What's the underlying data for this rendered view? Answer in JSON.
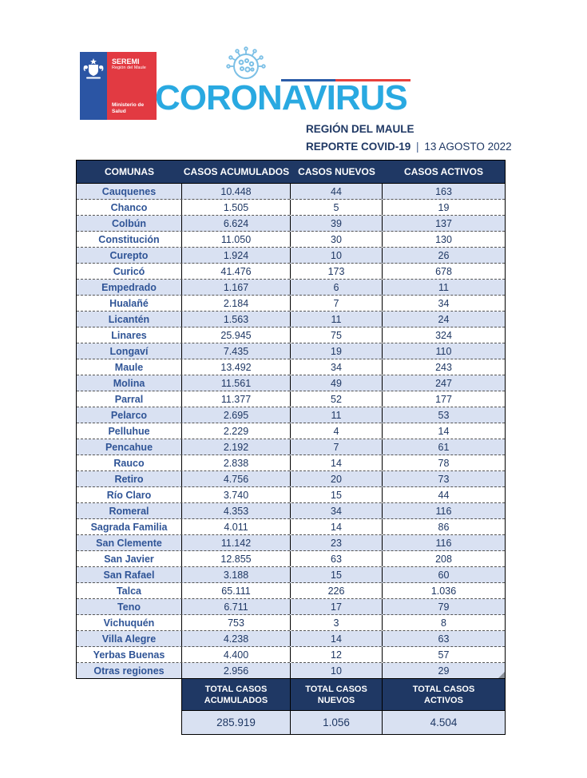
{
  "header": {
    "logo": {
      "seremi": "SEREMI",
      "region": "Región del Maule",
      "ministerio_line1": "Ministerio de",
      "ministerio_line2": "Salud"
    },
    "title": "CORONAVIRUS",
    "subtitle1": "REGIÓN DEL MAULE",
    "subtitle2_bold": "REPORTE COVID-19",
    "subtitle2_sep": "|",
    "subtitle2_date": "13 AGOSTO 2022"
  },
  "table": {
    "columns": [
      "COMUNAS",
      "CASOS ACUMULADOS",
      "CASOS NUEVOS",
      "CASOS ACTIVOS"
    ],
    "rows": [
      [
        "Cauquenes",
        "10.448",
        "44",
        "163"
      ],
      [
        "Chanco",
        "1.505",
        "5",
        "19"
      ],
      [
        "Colbún",
        "6.624",
        "39",
        "137"
      ],
      [
        "Constitución",
        "11.050",
        "30",
        "130"
      ],
      [
        "Curepto",
        "1.924",
        "10",
        "26"
      ],
      [
        "Curicó",
        "41.476",
        "173",
        "678"
      ],
      [
        "Empedrado",
        "1.167",
        "6",
        "11"
      ],
      [
        "Hualañé",
        "2.184",
        "7",
        "34"
      ],
      [
        "Licantén",
        "1.563",
        "11",
        "24"
      ],
      [
        "Linares",
        "25.945",
        "75",
        "324"
      ],
      [
        "Longaví",
        "7.435",
        "19",
        "110"
      ],
      [
        "Maule",
        "13.492",
        "34",
        "243"
      ],
      [
        "Molina",
        "11.561",
        "49",
        "247"
      ],
      [
        "Parral",
        "11.377",
        "52",
        "177"
      ],
      [
        "Pelarco",
        "2.695",
        "11",
        "53"
      ],
      [
        "Pelluhue",
        "2.229",
        "4",
        "14"
      ],
      [
        "Pencahue",
        "2.192",
        "7",
        "61"
      ],
      [
        "Rauco",
        "2.838",
        "14",
        "78"
      ],
      [
        "Retiro",
        "4.756",
        "20",
        "73"
      ],
      [
        "Río Claro",
        "3.740",
        "15",
        "44"
      ],
      [
        "Romeral",
        "4.353",
        "34",
        "116"
      ],
      [
        "Sagrada Familia",
        "4.011",
        "14",
        "86"
      ],
      [
        "San Clemente",
        "11.142",
        "23",
        "116"
      ],
      [
        "San Javier",
        "12.855",
        "63",
        "208"
      ],
      [
        "San Rafael",
        "3.188",
        "15",
        "60"
      ],
      [
        "Talca",
        "65.111",
        "226",
        "1.036"
      ],
      [
        "Teno",
        "6.711",
        "17",
        "79"
      ],
      [
        "Vichuquén",
        "753",
        "3",
        "8"
      ],
      [
        "Villa Alegre",
        "4.238",
        "14",
        "63"
      ],
      [
        "Yerbas Buenas",
        "4.400",
        "12",
        "57"
      ],
      [
        "Otras regiones",
        "2.956",
        "10",
        "29"
      ]
    ],
    "footer": {
      "labels": [
        [
          "TOTAL CASOS",
          "ACUMULADOS"
        ],
        [
          "TOTAL CASOS",
          "NUEVOS"
        ],
        [
          "TOTAL CASOS",
          "ACTIVOS"
        ]
      ],
      "values": [
        "285.919",
        "1.056",
        "4.504"
      ]
    }
  },
  "colors": {
    "navy": "#1F3864",
    "row_alt_blue": "#D9E1F2",
    "accent_light_blue": "#29A9E1",
    "commune_text_blue": "#2F5496",
    "flag_blue": "#2B55A4",
    "flag_red": "#E23A42"
  }
}
